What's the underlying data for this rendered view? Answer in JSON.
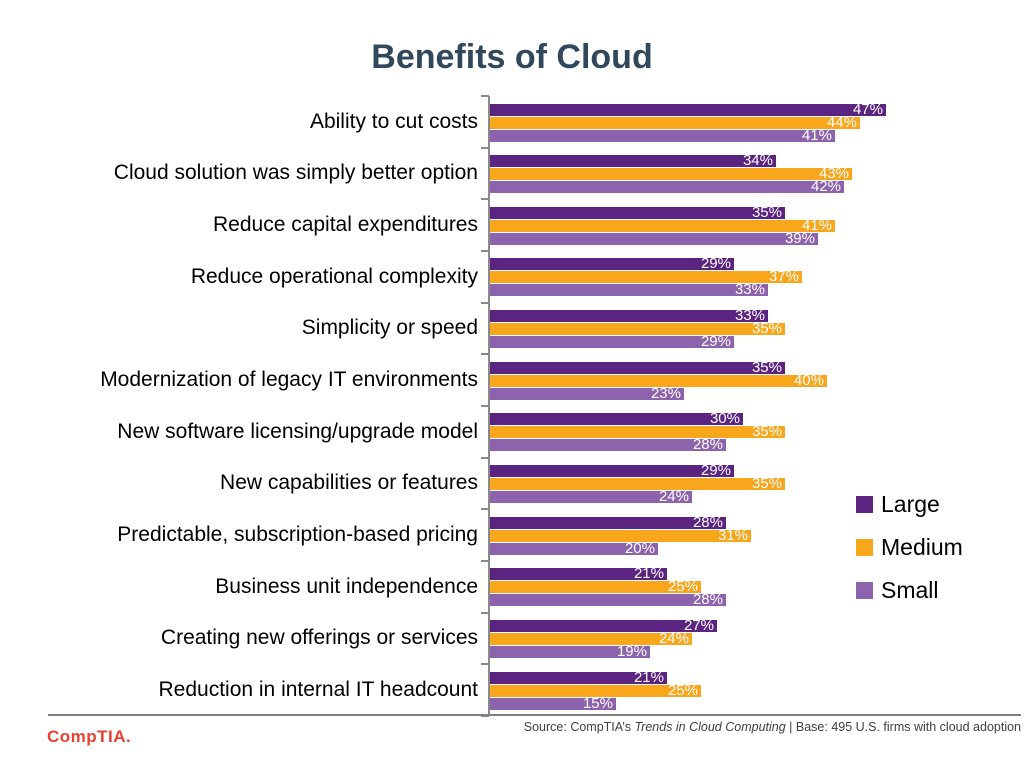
{
  "page": {
    "title": "Benefits of Cloud"
  },
  "colors": {
    "title_text": "#31485C",
    "series_large": "#5B2480",
    "series_medium": "#F8A61C",
    "series_small": "#8E63AE",
    "axis": "#8a8a8a",
    "logo_red": "#E8402F",
    "footer_text": "#404040"
  },
  "chart_data": {
    "type": "bar",
    "orientation": "horizontal",
    "title": "Benefits of Cloud",
    "xlabel": "",
    "ylabel": "",
    "xlim": [
      0,
      50
    ],
    "grid": false,
    "data_labels": "percent shown in white inside right end of each bar",
    "legend": {
      "position": "right-middle",
      "entries": [
        "Large",
        "Medium",
        "Small"
      ]
    },
    "categories": [
      "Ability to cut costs",
      "Cloud solution was simply better option",
      "Reduce capital expenditures",
      "Reduce operational complexity",
      "Simplicity or speed",
      "Modernization of legacy IT environments",
      "New software licensing/upgrade model",
      "New capabilities or features",
      "Predictable, subscription-based pricing",
      "Business unit independence",
      "Creating new offerings or services",
      "Reduction in internal IT headcount"
    ],
    "series": [
      {
        "name": "Large",
        "color": "#5B2480",
        "values": [
          47,
          34,
          35,
          29,
          33,
          35,
          30,
          29,
          28,
          21,
          27,
          21
        ]
      },
      {
        "name": "Medium",
        "color": "#F8A61C",
        "values": [
          44,
          43,
          41,
          37,
          35,
          40,
          35,
          35,
          31,
          25,
          24,
          25
        ]
      },
      {
        "name": "Small",
        "color": "#8E63AE",
        "values": [
          41,
          42,
          39,
          33,
          29,
          23,
          28,
          24,
          20,
          28,
          19,
          15
        ]
      }
    ],
    "value_suffix": "%"
  },
  "footer": {
    "source_prefix": "Source: CompTIA’s ",
    "source_italic": "Trends in Cloud Computing",
    "source_suffix": " | Base: 495 U.S. firms with cloud adoption",
    "logo_text": "CompTIA."
  }
}
